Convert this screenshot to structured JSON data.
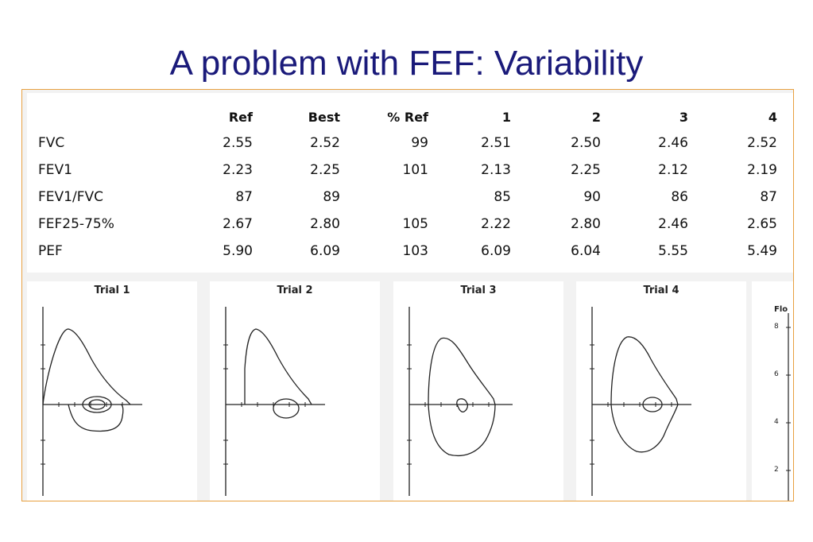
{
  "slide": {
    "title": "A problem with FEF: Variability"
  },
  "table": {
    "headers": [
      "",
      "Ref",
      "Best",
      "% Ref",
      "1",
      "2",
      "3",
      "4"
    ],
    "rows": [
      {
        "label": "FVC",
        "values": [
          "2.55",
          "2.52",
          "99",
          "2.51",
          "2.50",
          "2.46",
          "2.52"
        ]
      },
      {
        "label": "FEV1",
        "values": [
          "2.23",
          "2.25",
          "101",
          "2.13",
          "2.25",
          "2.12",
          "2.19"
        ]
      },
      {
        "label": "FEV1/FVC",
        "values": [
          "87",
          "89",
          "",
          "85",
          "90",
          "86",
          "87"
        ]
      },
      {
        "label": "FEF25-75%",
        "values": [
          "2.67",
          "2.80",
          "105",
          "2.22",
          "2.80",
          "2.46",
          "2.65"
        ]
      },
      {
        "label": "PEF",
        "values": [
          "5.90",
          "6.09",
          "103",
          "6.09",
          "6.04",
          "5.55",
          "5.49"
        ]
      }
    ]
  },
  "trials": [
    {
      "title": "Trial 1"
    },
    {
      "title": "Trial 2"
    },
    {
      "title": "Trial 3"
    },
    {
      "title": "Trial 4"
    }
  ],
  "flow_axis": {
    "label": "Flo",
    "ticks": [
      "8",
      "6",
      "4",
      "2"
    ]
  }
}
